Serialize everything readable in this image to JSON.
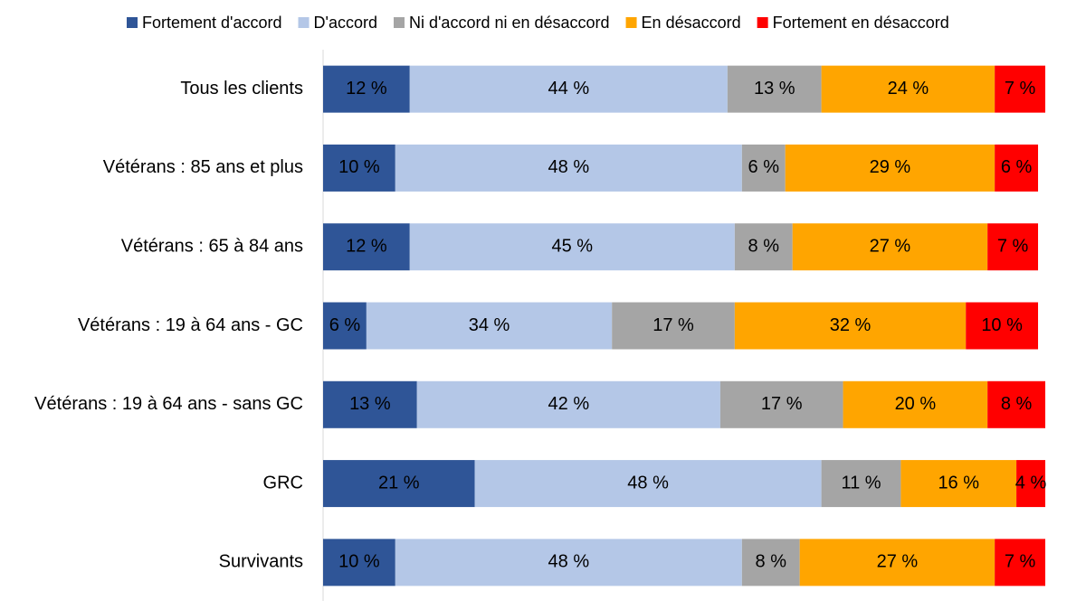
{
  "chart_data": {
    "type": "stacked-bar-horizontal",
    "categories": [
      "Tous les clients",
      "Vétérans : 85 ans et plus",
      "Vétérans : 65 à 84 ans",
      "Vétérans : 19 à 64 ans - GC",
      "Vétérans : 19 à 64 ans - sans GC",
      "GRC",
      "Survivants"
    ],
    "xlim": [
      0,
      100
    ],
    "legend": "top",
    "series": [
      {
        "name": "Fortement d'accord",
        "color": "#2f5597",
        "values": [
          12,
          10,
          12,
          6,
          13,
          21,
          10
        ],
        "value_labels": [
          "12 %",
          "10 %",
          "12 %",
          "6 %",
          "13 %",
          "21 %",
          "10 %"
        ]
      },
      {
        "name": "D'accord",
        "color": "#b4c7e7",
        "values": [
          44,
          48,
          45,
          34,
          42,
          48,
          48
        ],
        "value_labels": [
          "44 %",
          "48 %",
          "45 %",
          "34 %",
          "42 %",
          "48 %",
          "48 %"
        ]
      },
      {
        "name": "Ni d'accord ni en désaccord",
        "color": "#a5a5a5",
        "values": [
          13,
          6,
          8,
          17,
          17,
          11,
          8
        ],
        "value_labels": [
          "13 %",
          "6 %",
          "8 %",
          "17 %",
          "17 %",
          "11 %",
          "8 %"
        ]
      },
      {
        "name": "En désaccord",
        "color": "#ffa500",
        "values": [
          24,
          29,
          27,
          32,
          20,
          16,
          27
        ],
        "value_labels": [
          "24 %",
          "29 %",
          "27 %",
          "32 %",
          "20 %",
          "16 %",
          "27 %"
        ]
      },
      {
        "name": "Fortement en désaccord",
        "color": "#ff0000",
        "values": [
          7,
          6,
          7,
          10,
          8,
          4,
          7
        ],
        "value_labels": [
          "7 %",
          "6 %",
          "7 %",
          "10 %",
          "8 %",
          "4 %",
          "7 %"
        ]
      }
    ]
  }
}
